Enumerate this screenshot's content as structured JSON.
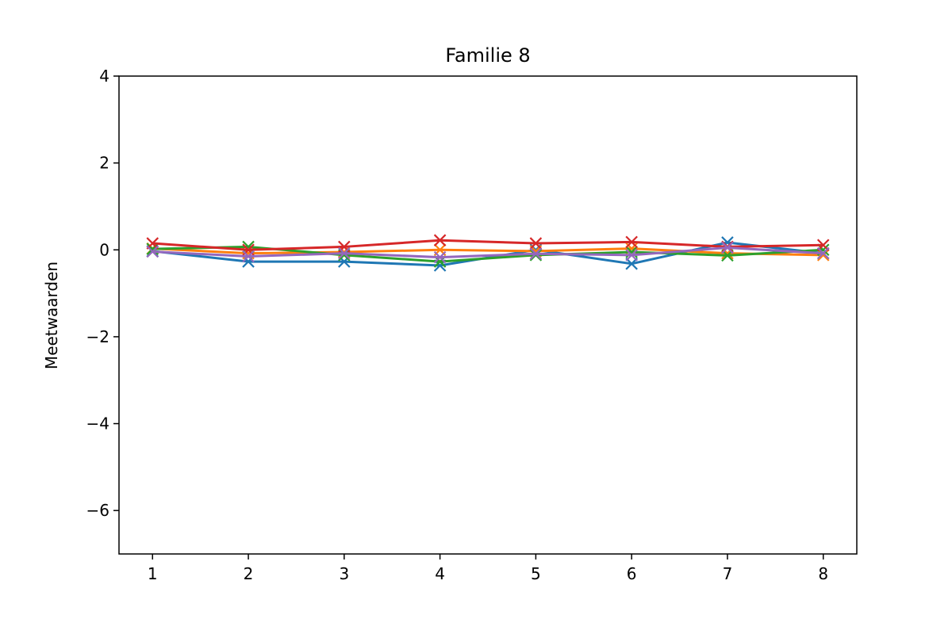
{
  "chart_data": {
    "type": "line",
    "title": "Familie 8",
    "xlabel": "",
    "ylabel": "Meetwaarden",
    "x": [
      1,
      2,
      3,
      4,
      5,
      6,
      7,
      8
    ],
    "xticks": [
      "1",
      "2",
      "3",
      "4",
      "5",
      "6",
      "7",
      "8"
    ],
    "ylim": [
      -7,
      4
    ],
    "yticks": [
      4,
      2,
      0,
      -2,
      -4,
      -6
    ],
    "ytick_labels": [
      "4",
      "2",
      "0",
      "−2",
      "−4",
      "−6"
    ],
    "grid": false,
    "marker": "x",
    "series": [
      {
        "color": "#1f77b4",
        "values": [
          -0.03,
          -0.27,
          -0.27,
          -0.36,
          0.0,
          -0.32,
          0.17,
          -0.08
        ]
      },
      {
        "color": "#ff7f0e",
        "values": [
          0.03,
          -0.08,
          -0.05,
          0.0,
          -0.03,
          0.03,
          -0.08,
          -0.12
        ]
      },
      {
        "color": "#2ca02c",
        "values": [
          0.02,
          0.07,
          -0.12,
          -0.27,
          -0.12,
          -0.05,
          -0.13,
          0.0
        ]
      },
      {
        "color": "#d62728",
        "values": [
          0.15,
          0.0,
          0.07,
          0.22,
          0.15,
          0.18,
          0.07,
          0.11
        ]
      },
      {
        "color": "#9467bd",
        "values": [
          -0.04,
          -0.15,
          -0.08,
          -0.17,
          -0.09,
          -0.12,
          0.05,
          -0.08
        ]
      }
    ]
  }
}
